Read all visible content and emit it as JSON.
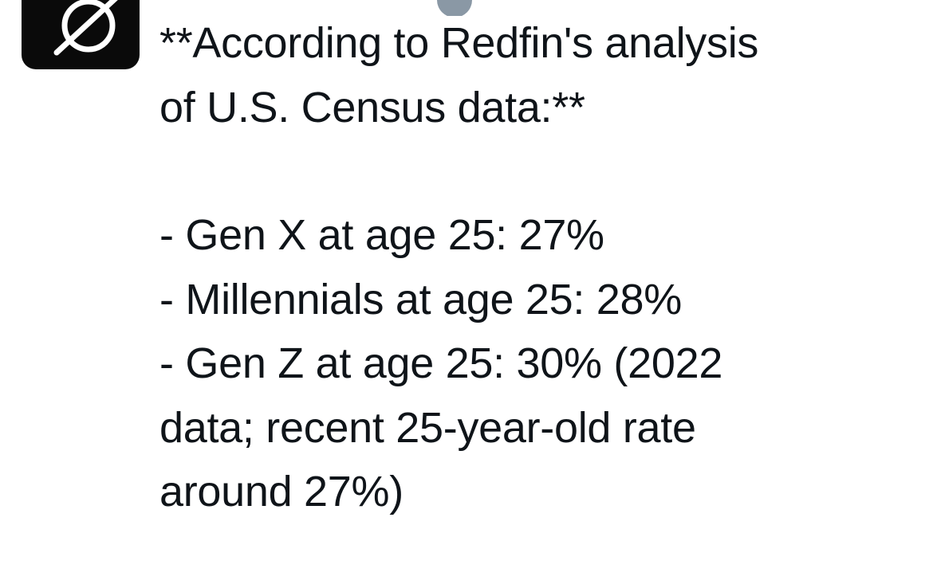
{
  "post": {
    "lines": [
      "**According to Redfin's analysis",
      "of U.S. Census data:**",
      "- Gen X at age 25: 27%",
      "- Millennials at age 25: 28%",
      "- Gen Z at age 25: 30% (2022",
      "data; recent 25-year-old rate",
      "around 27%)"
    ]
  }
}
